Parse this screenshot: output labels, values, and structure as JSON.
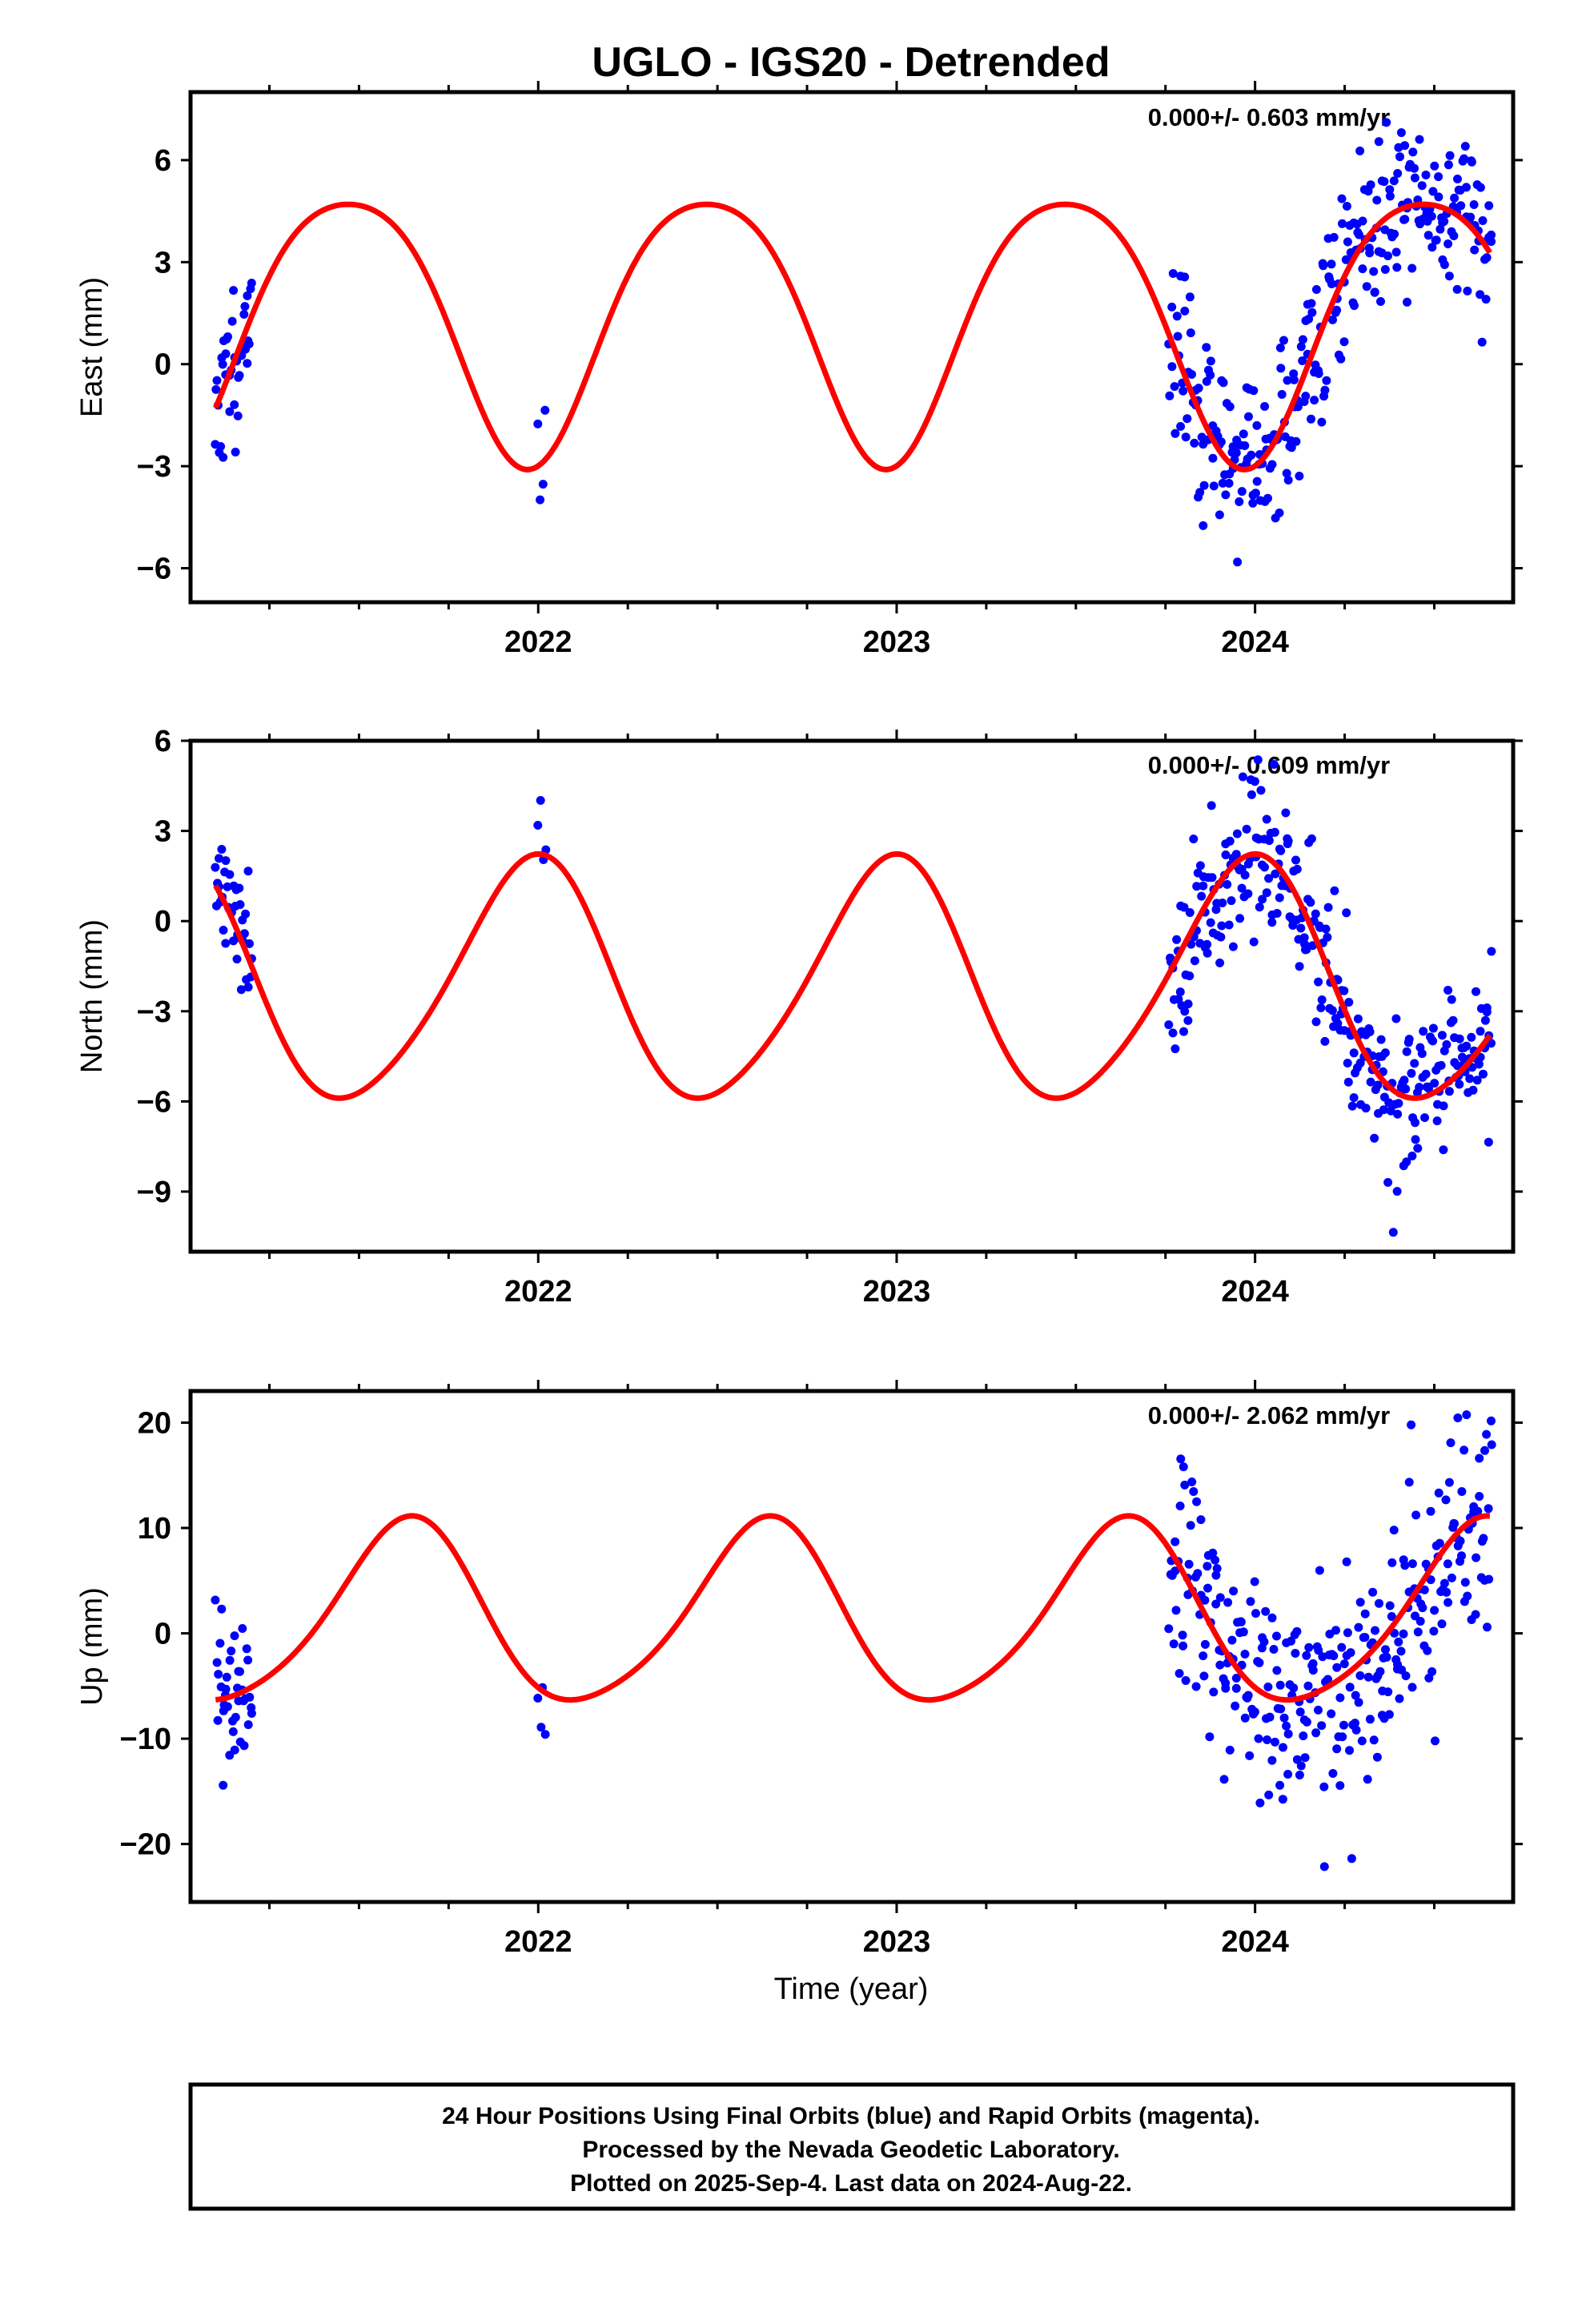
{
  "title": "UGLO - IGS20 - Detrended",
  "xlabel": "Time (year)",
  "footer": {
    "line1": "24 Hour Positions Using Final Orbits (blue) and Rapid Orbits (magenta).",
    "line2": "Processed by the Nevada Geodetic Laboratory.",
    "line3": "Plotted on 2025-Sep-4. Last data on 2024-Aug-22."
  },
  "colors": {
    "data": "#0000ff",
    "model": "#ff0000",
    "frame": "#000000"
  },
  "chart_data": [
    {
      "type": "scatter",
      "name": "east",
      "ylabel": "East (mm)",
      "rate_text": "0.000+/- 0.603 mm/yr",
      "xlim": [
        2021.03,
        2024.72
      ],
      "ylim": [
        -7.0,
        8.0
      ],
      "x_ticks": [
        2022,
        2023,
        2024
      ],
      "y_ticks": [
        -6,
        -3,
        0,
        3,
        6
      ],
      "model": {
        "mean": 1.35,
        "amp1": 3.9,
        "phase1": 2021.47,
        "amp2": 0.55,
        "phase2": 2021.72
      },
      "segments": [
        {
          "start": 2021.1,
          "end": 2021.2,
          "n": 38,
          "seed": 11,
          "scatter": 1.1
        },
        {
          "start": 2022.0,
          "end": 2022.02,
          "n": 4,
          "seed": 12,
          "scatter": 0.9
        },
        {
          "start": 2023.76,
          "end": 2024.66,
          "n": 300,
          "seed": 13,
          "scatter": 1.3
        }
      ]
    },
    {
      "type": "scatter",
      "name": "north",
      "ylabel": "North (mm)",
      "rate_text": "0.000+/- 0.609 mm/yr",
      "xlim": [
        2021.03,
        2024.72
      ],
      "ylim": [
        -11.0,
        6.0
      ],
      "x_ticks": [
        2022,
        2023,
        2024
      ],
      "y_ticks": [
        -9,
        -6,
        -3,
        0,
        3,
        6
      ],
      "model": {
        "mean": -2.1,
        "amp1": 4.0,
        "phase1": 2020.98,
        "amp2": 0.45,
        "phase2": 2021.05
      },
      "segments": [
        {
          "start": 2021.1,
          "end": 2021.2,
          "n": 38,
          "seed": 21,
          "scatter": 1.0
        },
        {
          "start": 2022.0,
          "end": 2022.02,
          "n": 4,
          "seed": 22,
          "scatter": 0.8
        },
        {
          "start": 2023.76,
          "end": 2024.66,
          "n": 300,
          "seed": 23,
          "scatter": 1.3
        }
      ]
    },
    {
      "type": "scatter",
      "name": "up",
      "ylabel": "Up (mm)",
      "rate_text": "0.000+/- 2.062 mm/yr",
      "xlim": [
        2021.03,
        2024.72
      ],
      "ylim": [
        -25.5,
        23.0
      ],
      "x_ticks": [
        2022,
        2023,
        2024
      ],
      "y_ticks": [
        -20,
        -10,
        0,
        10,
        20
      ],
      "model": {
        "mean": 1.5,
        "amp1": 8.6,
        "phase1": 2021.63,
        "amp2": 1.2,
        "phase2": 2021.68
      },
      "segments": [
        {
          "start": 2021.1,
          "end": 2021.2,
          "n": 38,
          "seed": 31,
          "scatter": 4.5
        },
        {
          "start": 2022.0,
          "end": 2022.02,
          "n": 4,
          "seed": 32,
          "scatter": 4.5
        },
        {
          "start": 2023.76,
          "end": 2024.66,
          "n": 300,
          "seed": 33,
          "scatter": 5.5
        }
      ]
    }
  ]
}
